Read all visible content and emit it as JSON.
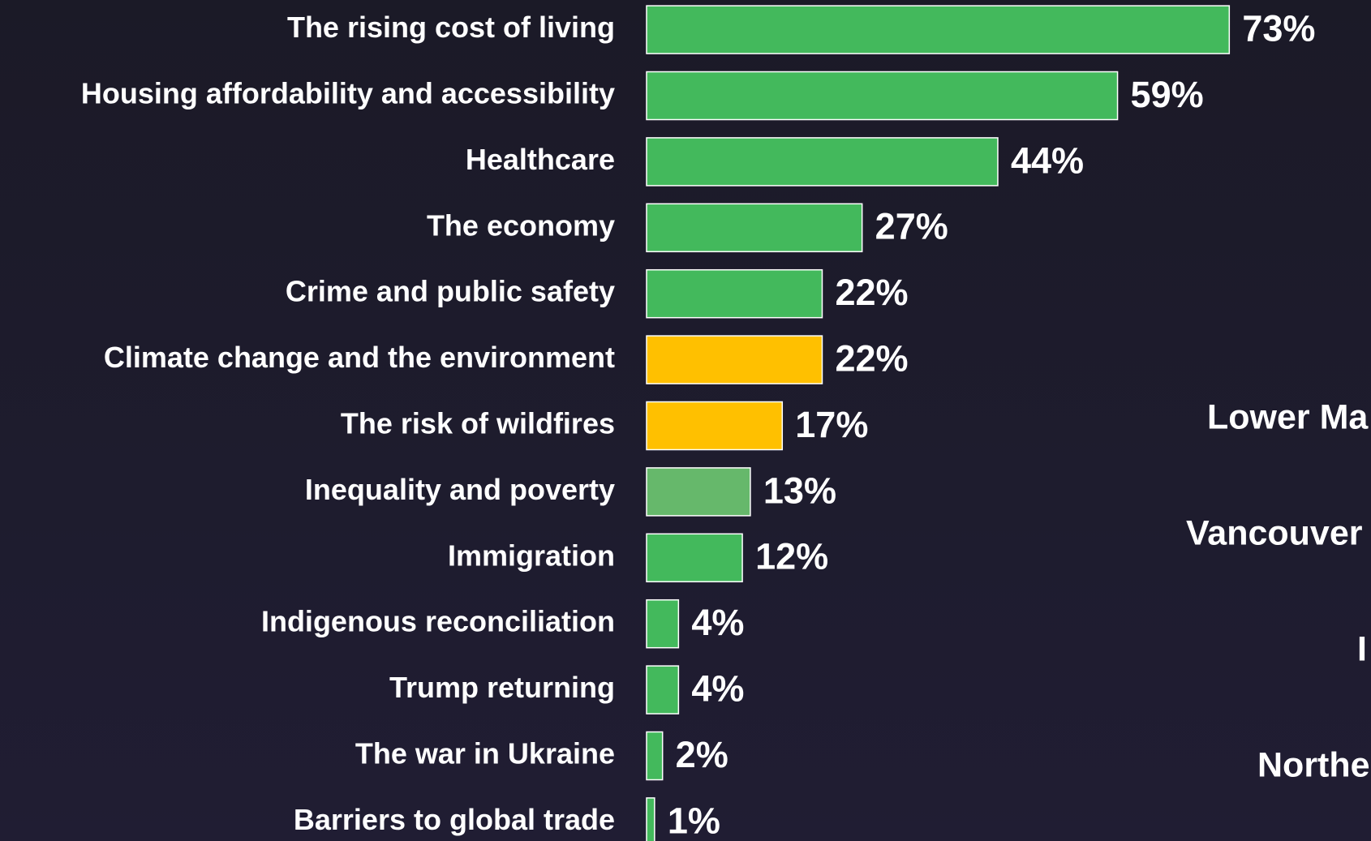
{
  "chart_data": {
    "type": "bar",
    "orientation": "horizontal",
    "categories": [
      "The rising cost of living",
      "Housing affordability and accessibility",
      "Healthcare",
      "The economy",
      "Crime and public safety",
      "Climate change and the environment",
      "The risk of wildfires",
      "Inequality and poverty",
      "Immigration",
      "Indigenous reconciliation",
      "Trump returning",
      "The war in Ukraine",
      "Barriers to global trade"
    ],
    "values": [
      73,
      59,
      44,
      27,
      22,
      22,
      17,
      13,
      12,
      4,
      4,
      2,
      1
    ],
    "value_labels": [
      "73%",
      "59%",
      "44%",
      "27%",
      "22%",
      "22%",
      "17%",
      "13%",
      "12%",
      "4%",
      "4%",
      "2%",
      "1%"
    ],
    "colors": [
      "#43b95c",
      "#43b95c",
      "#43b95c",
      "#43b95c",
      "#43b95c",
      "#ffc000",
      "#ffc000",
      "#66b86b",
      "#43b95c",
      "#43b95c",
      "#43b95c",
      "#43b95c",
      "#43b95c"
    ],
    "annotations": [
      "Lower Ma",
      "Vancouver",
      "I",
      "Northe"
    ]
  }
}
